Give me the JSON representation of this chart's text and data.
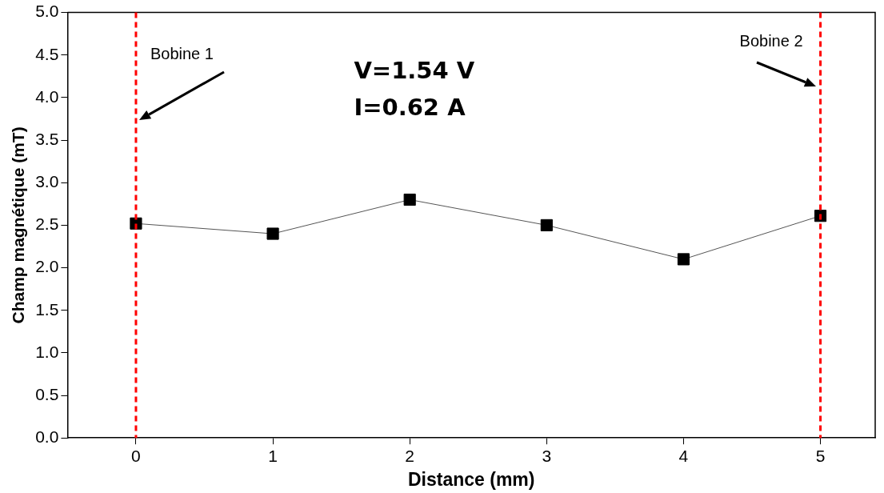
{
  "chart_data": {
    "type": "line",
    "xlabel": "Distance (mm)",
    "ylabel": "Champ magnétique (mT)",
    "x": [
      0,
      1,
      2,
      3,
      4,
      5
    ],
    "series": [
      {
        "color": "#000000",
        "values": [
          2.52,
          2.4,
          2.8,
          2.5,
          2.1,
          2.61
        ]
      }
    ],
    "xlim": [
      -0.5,
      5.4
    ],
    "xticks": [
      0,
      1,
      2,
      3,
      4,
      5
    ],
    "ylim": [
      0,
      5
    ],
    "yticks": [
      {
        "value": 0,
        "label": "0.0"
      },
      {
        "value": 0.5,
        "label": "0.5"
      },
      {
        "value": 1,
        "label": "1.0"
      },
      {
        "value": 1.5,
        "label": "1.5"
      },
      {
        "value": 2,
        "label": "2.0"
      },
      {
        "value": 2.5,
        "label": "2.5"
      },
      {
        "value": 3,
        "label": "3.0"
      },
      {
        "value": 3.5,
        "label": "3.5"
      },
      {
        "value": 4,
        "label": "4.0"
      },
      {
        "value": 4.5,
        "label": "4.5"
      },
      {
        "value": 5,
        "label": "5.0"
      }
    ],
    "ref_lines": [
      {
        "axis": "x",
        "value": 0,
        "label": "Bobine 1",
        "color": "#ff0000",
        "line_style": "dashed"
      },
      {
        "axis": "x",
        "value": 5,
        "label": "Bobine 2",
        "color": "#ff0000",
        "line_style": "dashed"
      }
    ],
    "annotations": [
      "V=1.54 V",
      "I=0.62 A"
    ],
    "marker": "square",
    "grid": false,
    "legend": false
  }
}
